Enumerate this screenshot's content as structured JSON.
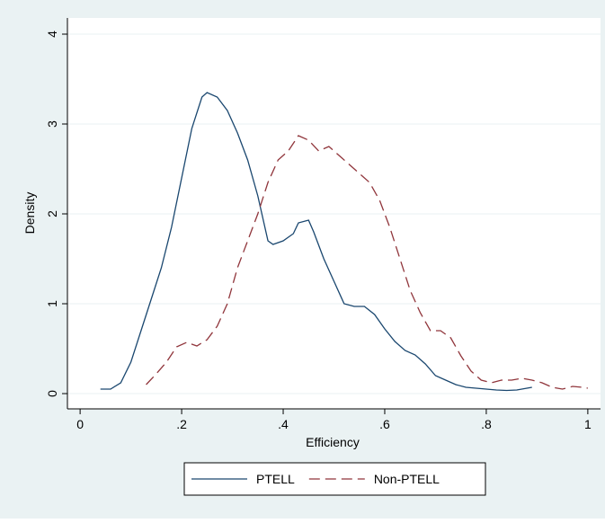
{
  "chart_data": {
    "type": "line",
    "x_label": "Efficiency",
    "y_label": "Density",
    "xlim": [
      -0.025,
      1.025
    ],
    "ylim": [
      -0.17,
      4.18
    ],
    "xticks": [
      0,
      {
        "value": 0.2,
        "label": ".2"
      },
      {
        "value": 0.4,
        "label": ".4"
      },
      {
        "value": 0.6,
        "label": ".6"
      },
      {
        "value": 0.8,
        "label": ".8"
      },
      1
    ],
    "yticks": [
      0,
      1,
      2,
      3,
      4
    ],
    "grid": true,
    "legend": "bottom",
    "series": [
      {
        "name": "PTELL",
        "color": "#1a476f",
        "dashed": false,
        "x": [
          0.04,
          0.06,
          0.08,
          0.1,
          0.12,
          0.14,
          0.16,
          0.18,
          0.2,
          0.22,
          0.24,
          0.25,
          0.27,
          0.29,
          0.31,
          0.33,
          0.35,
          0.37,
          0.38,
          0.4,
          0.42,
          0.43,
          0.45,
          0.46,
          0.48,
          0.5,
          0.52,
          0.54,
          0.56,
          0.58,
          0.6,
          0.62,
          0.64,
          0.66,
          0.68,
          0.7,
          0.72,
          0.74,
          0.76,
          0.78,
          0.8,
          0.82,
          0.84,
          0.86,
          0.88,
          0.89
        ],
        "values": [
          0.05,
          0.05,
          0.12,
          0.35,
          0.7,
          1.05,
          1.4,
          1.85,
          2.4,
          2.95,
          3.3,
          3.35,
          3.3,
          3.15,
          2.9,
          2.6,
          2.2,
          1.7,
          1.66,
          1.7,
          1.78,
          1.9,
          1.93,
          1.8,
          1.5,
          1.25,
          1.0,
          0.97,
          0.97,
          0.88,
          0.72,
          0.58,
          0.48,
          0.43,
          0.33,
          0.2,
          0.15,
          0.1,
          0.07,
          0.06,
          0.05,
          0.04,
          0.035,
          0.04,
          0.06,
          0.07
        ]
      },
      {
        "name": "Non-PTELL",
        "color": "#90353b",
        "dashed": true,
        "x": [
          0.13,
          0.15,
          0.17,
          0.19,
          0.21,
          0.23,
          0.25,
          0.27,
          0.29,
          0.31,
          0.33,
          0.35,
          0.37,
          0.39,
          0.41,
          0.43,
          0.45,
          0.47,
          0.49,
          0.51,
          0.53,
          0.55,
          0.57,
          0.59,
          0.61,
          0.63,
          0.65,
          0.67,
          0.69,
          0.71,
          0.73,
          0.75,
          0.77,
          0.79,
          0.81,
          0.83,
          0.85,
          0.87,
          0.89,
          0.91,
          0.93,
          0.95,
          0.97,
          0.99,
          1.0
        ],
        "values": [
          0.1,
          0.22,
          0.35,
          0.52,
          0.57,
          0.53,
          0.6,
          0.75,
          1.0,
          1.4,
          1.7,
          2.0,
          2.35,
          2.6,
          2.7,
          2.87,
          2.82,
          2.7,
          2.75,
          2.65,
          2.55,
          2.45,
          2.35,
          2.15,
          1.85,
          1.5,
          1.15,
          0.9,
          0.7,
          0.7,
          0.62,
          0.42,
          0.25,
          0.15,
          0.12,
          0.15,
          0.15,
          0.17,
          0.15,
          0.12,
          0.07,
          0.05,
          0.08,
          0.07,
          0.06
        ]
      }
    ]
  }
}
